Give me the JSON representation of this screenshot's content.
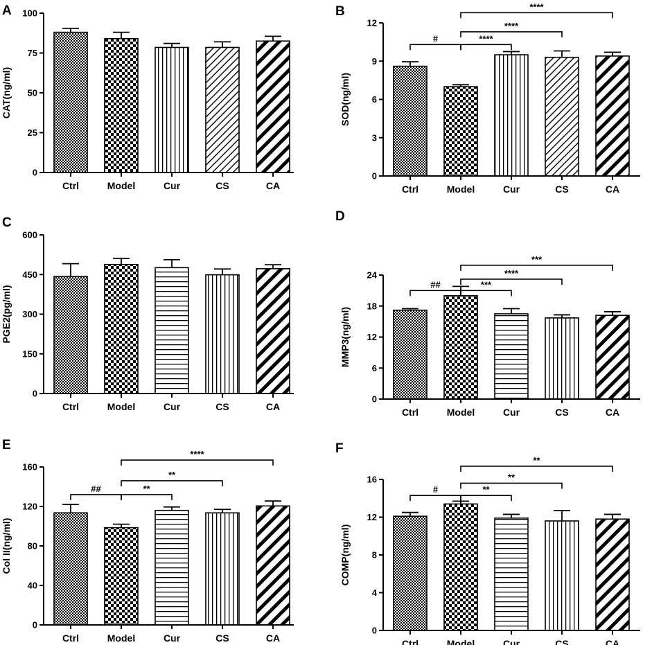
{
  "chart_data": [
    {
      "type": "bar",
      "panel": "A",
      "ylabel": "CAT(ng/ml)",
      "ylim": [
        0,
        100
      ],
      "yticks": [
        0,
        25,
        50,
        75,
        100
      ],
      "categories": [
        "Ctrl",
        "Model",
        "Cur",
        "CS",
        "CA"
      ],
      "values": [
        88,
        84,
        78.5,
        78.5,
        82.5
      ],
      "errors": [
        2.5,
        4,
        2.5,
        3.5,
        3
      ],
      "patterns": [
        "fine-check",
        "check",
        "vertical",
        "diag-fine",
        "diag-bold"
      ],
      "brackets": []
    },
    {
      "type": "bar",
      "panel": "B",
      "ylabel": "SOD(ng/ml)",
      "ylim": [
        0,
        12
      ],
      "yticks": [
        0,
        3,
        6,
        9,
        12
      ],
      "categories": [
        "Ctrl",
        "Model",
        "Cur",
        "CS",
        "CA"
      ],
      "values": [
        8.6,
        7.0,
        9.5,
        9.3,
        9.4
      ],
      "errors": [
        0.35,
        0.15,
        0.25,
        0.5,
        0.3
      ],
      "patterns": [
        "fine-check",
        "check",
        "vertical",
        "diag-fine",
        "diag-bold"
      ],
      "brackets": [
        {
          "from": 0,
          "to": 1,
          "y": 10.3,
          "label": "#"
        },
        {
          "from": 1,
          "to": 2,
          "y": 10.3,
          "label": "****"
        },
        {
          "from": 1,
          "to": 3,
          "y": 11.3,
          "label": "****"
        },
        {
          "from": 1,
          "to": 4,
          "y": 12.8,
          "label": "****"
        }
      ]
    },
    {
      "type": "bar",
      "panel": "C",
      "ylabel": "PGE2(pg/ml)",
      "ylim": [
        0,
        600
      ],
      "yticks": [
        0,
        150,
        300,
        450,
        600
      ],
      "categories": [
        "Ctrl",
        "Model",
        "Cur",
        "CS",
        "CA"
      ],
      "values": [
        443,
        488,
        476,
        449,
        472
      ],
      "errors": [
        48,
        23,
        30,
        22,
        15
      ],
      "patterns": [
        "fine-check",
        "check",
        "horizontal",
        "vertical",
        "diag-bold"
      ],
      "brackets": []
    },
    {
      "type": "bar",
      "panel": "D",
      "ylabel": "MMP3(ng/ml)",
      "ylim": [
        0,
        24
      ],
      "yticks": [
        0,
        6,
        12,
        18,
        24
      ],
      "categories": [
        "Ctrl",
        "Model",
        "Cur",
        "CS",
        "CA"
      ],
      "values": [
        17.2,
        20.0,
        16.5,
        15.7,
        16.2
      ],
      "errors": [
        0.3,
        1.8,
        1.0,
        0.6,
        0.7
      ],
      "patterns": [
        "fine-check",
        "check",
        "horizontal",
        "vertical",
        "diag-bold"
      ],
      "brackets": [
        {
          "from": 0,
          "to": 1,
          "y": 21.0,
          "label": "##"
        },
        {
          "from": 1,
          "to": 2,
          "y": 21.0,
          "label": "***"
        },
        {
          "from": 1,
          "to": 3,
          "y": 23.2,
          "label": "****"
        },
        {
          "from": 1,
          "to": 4,
          "y": 25.9,
          "label": "***"
        }
      ]
    },
    {
      "type": "bar",
      "panel": "E",
      "ylabel": "Col II(ng/ml)",
      "ylim": [
        0,
        160
      ],
      "yticks": [
        0,
        40,
        80,
        120,
        160
      ],
      "categories": [
        "Ctrl",
        "Model",
        "Cur",
        "CS",
        "CA"
      ],
      "values": [
        113.5,
        98.5,
        116,
        113.5,
        120.5
      ],
      "errors": [
        8.5,
        3.5,
        3.5,
        3.5,
        5
      ],
      "patterns": [
        "fine-check",
        "check",
        "horizontal",
        "vertical",
        "diag-bold"
      ],
      "brackets": [
        {
          "from": 0,
          "to": 1,
          "y": 132,
          "label": "##"
        },
        {
          "from": 1,
          "to": 2,
          "y": 132,
          "label": "**"
        },
        {
          "from": 1,
          "to": 3,
          "y": 146,
          "label": "**"
        },
        {
          "from": 1,
          "to": 4,
          "y": 167,
          "label": "****"
        }
      ]
    },
    {
      "type": "bar",
      "panel": "F",
      "ylabel": "COMP(ng/ml)",
      "ylim": [
        0,
        16
      ],
      "yticks": [
        0,
        4,
        8,
        12,
        16
      ],
      "categories": [
        "Ctrl",
        "Model",
        "Cur",
        "CS",
        "CA"
      ],
      "values": [
        12.1,
        13.4,
        11.9,
        11.6,
        11.8
      ],
      "errors": [
        0.4,
        0.3,
        0.4,
        1.1,
        0.5
      ],
      "patterns": [
        "fine-check",
        "check",
        "horizontal",
        "vertical",
        "diag-bold"
      ],
      "brackets": [
        {
          "from": 0,
          "to": 1,
          "y": 14.3,
          "label": "#"
        },
        {
          "from": 1,
          "to": 2,
          "y": 14.3,
          "label": "**"
        },
        {
          "from": 1,
          "to": 3,
          "y": 15.6,
          "label": "**"
        },
        {
          "from": 1,
          "to": 4,
          "y": 17.4,
          "label": "**"
        }
      ]
    }
  ]
}
